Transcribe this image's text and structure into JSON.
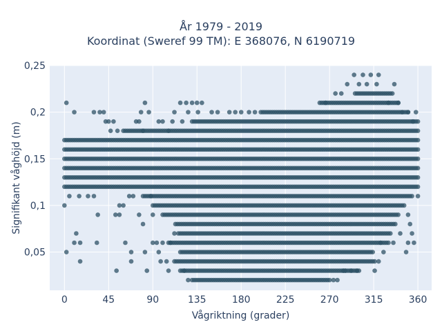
{
  "chart_data": {
    "type": "scatter",
    "title_lines": [
      "År 1979 - 2019",
      "Koordinat (Sweref 99 TM): E 368076, N 6190719"
    ],
    "xlabel": "Vågriktning (grader)",
    "ylabel": "Signifikant våghöjd (m)",
    "xlim": [
      -15,
      374
    ],
    "ylim": [
      0.009,
      0.25
    ],
    "x_ticks": [
      0,
      45,
      90,
      135,
      180,
      225,
      270,
      315,
      360
    ],
    "x_tick_labels": [
      "0",
      "45",
      "90",
      "135",
      "180",
      "225",
      "270",
      "315",
      "360"
    ],
    "y_ticks": [
      0.05,
      0.1,
      0.15,
      0.2,
      0.25
    ],
    "y_tick_labels": [
      "0,05",
      "0,1",
      "0,15",
      "0,2",
      "0,25"
    ],
    "grid": true,
    "marker_color": "#2e5266",
    "plot_background": "#e5ecf6",
    "bands": [
      {
        "y": 0.02,
        "x_start": 130,
        "x_end": 270
      },
      {
        "y": 0.03,
        "x_start": 120,
        "x_end": 300
      },
      {
        "y": 0.04,
        "x_start": 112,
        "x_end": 316
      },
      {
        "y": 0.05,
        "x_start": 118,
        "x_end": 315
      },
      {
        "y": 0.06,
        "x_start": 106,
        "x_end": 330
      },
      {
        "y": 0.07,
        "x_start": 116,
        "x_end": 333
      },
      {
        "y": 0.08,
        "x_start": 113,
        "x_end": 338
      },
      {
        "y": 0.09,
        "x_start": 100,
        "x_end": 340
      },
      {
        "y": 0.1,
        "x_start": 90,
        "x_end": 345
      },
      {
        "y": 0.11,
        "x_start": 80,
        "x_end": 355
      },
      {
        "y": 0.12,
        "x_start": 0,
        "x_end": 360
      },
      {
        "y": 0.13,
        "x_start": 0,
        "x_end": 360
      },
      {
        "y": 0.14,
        "x_start": 0,
        "x_end": 360
      },
      {
        "y": 0.15,
        "x_start": 0,
        "x_end": 360
      },
      {
        "y": 0.16,
        "x_start": 0,
        "x_end": 360
      },
      {
        "y": 0.17,
        "x_start": 0,
        "x_end": 360
      },
      {
        "y": 0.18,
        "x_start": 60,
        "x_end": 360
      },
      {
        "y": 0.19,
        "x_start": 130,
        "x_end": 360
      },
      {
        "y": 0.2,
        "x_start": 200,
        "x_end": 350
      },
      {
        "y": 0.21,
        "x_start": 260,
        "x_end": 340
      },
      {
        "y": 0.22,
        "x_start": 296,
        "x_end": 334
      }
    ],
    "scattered_points": [
      [
        0,
        0.1
      ],
      [
        2,
        0.05
      ],
      [
        2,
        0.21
      ],
      [
        10,
        0.2
      ],
      [
        12,
        0.07
      ],
      [
        10,
        0.06
      ],
      [
        16,
        0.06
      ],
      [
        16,
        0.04
      ],
      [
        5,
        0.11
      ],
      [
        15,
        0.11
      ],
      [
        24,
        0.11
      ],
      [
        30,
        0.11
      ],
      [
        34,
        0.09
      ],
      [
        33,
        0.06
      ],
      [
        30,
        0.2
      ],
      [
        36,
        0.2
      ],
      [
        40,
        0.2
      ],
      [
        42,
        0.19
      ],
      [
        45,
        0.19
      ],
      [
        50,
        0.19
      ],
      [
        47,
        0.18
      ],
      [
        54,
        0.18
      ],
      [
        52,
        0.09
      ],
      [
        56,
        0.09
      ],
      [
        56,
        0.1
      ],
      [
        60,
        0.1
      ],
      [
        53,
        0.03
      ],
      [
        62,
        0.06
      ],
      [
        68,
        0.05
      ],
      [
        68,
        0.04
      ],
      [
        66,
        0.11
      ],
      [
        70,
        0.11
      ],
      [
        76,
        0.09
      ],
      [
        80,
        0.08
      ],
      [
        73,
        0.19
      ],
      [
        76,
        0.19
      ],
      [
        80,
        0.18
      ],
      [
        78,
        0.2
      ],
      [
        82,
        0.21
      ],
      [
        86,
        0.2
      ],
      [
        88,
        0.11
      ],
      [
        90,
        0.09
      ],
      [
        82,
        0.05
      ],
      [
        84,
        0.03
      ],
      [
        90,
        0.06
      ],
      [
        94,
        0.06
      ],
      [
        96,
        0.05
      ],
      [
        98,
        0.04
      ],
      [
        100,
        0.06
      ],
      [
        104,
        0.04
      ],
      [
        106,
        0.03
      ],
      [
        108,
        0.06
      ],
      [
        112,
        0.07
      ],
      [
        118,
        0.03
      ],
      [
        122,
        0.03
      ],
      [
        126,
        0.02
      ],
      [
        112,
        0.2
      ],
      [
        118,
        0.21
      ],
      [
        124,
        0.21
      ],
      [
        130,
        0.21
      ],
      [
        135,
        0.21
      ],
      [
        140,
        0.21
      ],
      [
        96,
        0.19
      ],
      [
        100,
        0.19
      ],
      [
        106,
        0.18
      ],
      [
        110,
        0.19
      ],
      [
        120,
        0.19
      ],
      [
        126,
        0.2
      ],
      [
        136,
        0.2
      ],
      [
        150,
        0.2
      ],
      [
        156,
        0.2
      ],
      [
        168,
        0.2
      ],
      [
        174,
        0.2
      ],
      [
        180,
        0.2
      ],
      [
        188,
        0.2
      ],
      [
        194,
        0.2
      ],
      [
        266,
        0.21
      ],
      [
        276,
        0.22
      ],
      [
        282,
        0.22
      ],
      [
        288,
        0.23
      ],
      [
        300,
        0.23
      ],
      [
        308,
        0.23
      ],
      [
        318,
        0.23
      ],
      [
        336,
        0.23
      ],
      [
        295,
        0.24
      ],
      [
        304,
        0.24
      ],
      [
        312,
        0.24
      ],
      [
        320,
        0.24
      ],
      [
        330,
        0.21
      ],
      [
        340,
        0.21
      ],
      [
        344,
        0.2
      ],
      [
        350,
        0.2
      ],
      [
        355,
        0.19
      ],
      [
        358,
        0.2
      ],
      [
        346,
        0.1
      ],
      [
        350,
        0.09
      ],
      [
        352,
        0.08
      ],
      [
        354,
        0.07
      ],
      [
        350,
        0.06
      ],
      [
        356,
        0.06
      ],
      [
        360,
        0.11
      ],
      [
        342,
        0.07
      ],
      [
        348,
        0.05
      ],
      [
        335,
        0.06
      ],
      [
        325,
        0.05
      ],
      [
        316,
        0.03
      ],
      [
        320,
        0.04
      ],
      [
        322,
        0.06
      ],
      [
        298,
        0.03
      ],
      [
        292,
        0.03
      ],
      [
        286,
        0.03
      ],
      [
        278,
        0.02
      ],
      [
        274,
        0.02
      ],
      [
        284,
        0.03
      ]
    ]
  }
}
